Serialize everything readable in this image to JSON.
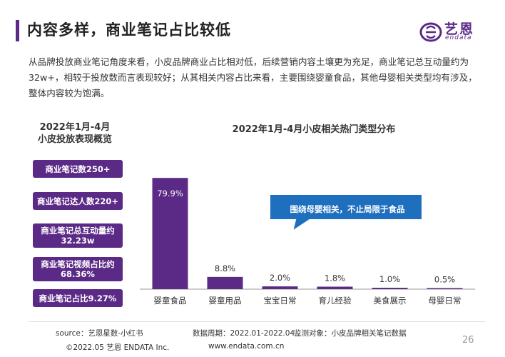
{
  "header": {
    "title": "内容多样，商业笔记占比较低",
    "logo_text": "艺恩",
    "logo_sub": "endata"
  },
  "intro": "从品牌投放商业笔记角度来看，小皮品牌商业占比相对低，后续营销内容土壤更为充足，商业笔记总互动量约为32w+，相较于投放数而言表现较好；从其相关内容占比来看，主要围绕婴童食品，其他母婴相关类型均有涉及，整体内容较为饱满。",
  "left_panel": {
    "title_line1": "2022年1月-4月",
    "title_line2": "小皮投放表现概览",
    "stats": [
      {
        "line1": "商业笔记数250+",
        "line2": ""
      },
      {
        "line1": "商业笔记达人数220+",
        "line2": ""
      },
      {
        "line1": "商业笔记总互动量约",
        "line2": "32.23w"
      },
      {
        "line1": "商业笔记视频占比约",
        "line2": "68.36%"
      },
      {
        "line1": "商业笔记占比9.27%",
        "line2": ""
      }
    ]
  },
  "chart_data": {
    "type": "bar",
    "title": "2022年1月-4月小皮相关热门类型分布",
    "categories": [
      "婴童食品",
      "婴童用品",
      "宝宝日常",
      "育儿经验",
      "美食展示",
      "母婴日常"
    ],
    "values": [
      79.9,
      8.8,
      2.0,
      1.8,
      1.0,
      0.5
    ],
    "labels": [
      "79.9%",
      "8.8%",
      "2.0%",
      "1.8%",
      "1.0%",
      "0.5%"
    ],
    "ylim": [
      0,
      100
    ],
    "grid": false,
    "bar_color": "#5b2a86",
    "callout": "围绕母婴相关，不止局限于食品",
    "callout_color": "#1f6fbf"
  },
  "footer": {
    "source": "source：艺恩星数-小红书",
    "period": "数据周期：2022.01-2022.04",
    "target": "监测对象：小皮品牌相关笔记数据",
    "copyright": "©2022.05 艺恩 ENDATA Inc.",
    "url": "www.endata.com.cn",
    "page": "26"
  }
}
